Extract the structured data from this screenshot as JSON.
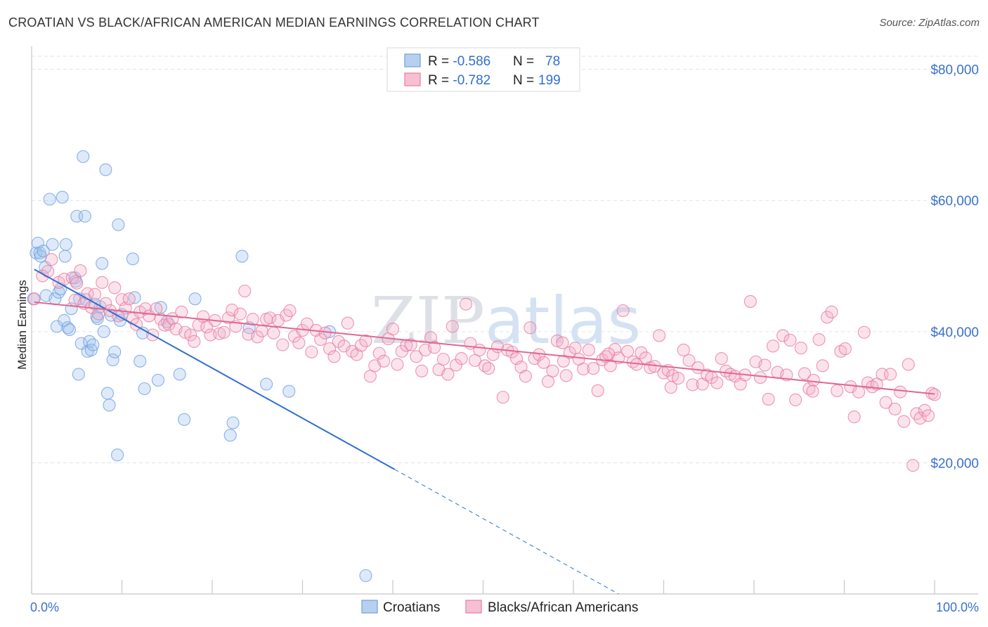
{
  "title": "CROATIAN VS BLACK/AFRICAN AMERICAN MEDIAN EARNINGS CORRELATION CHART",
  "source": "Source: ZipAtlas.com",
  "watermark": "ZIPatlas",
  "chart_data": {
    "type": "scatter",
    "xlabel": "",
    "ylabel": "Median Earnings",
    "xlim": [
      0,
      100
    ],
    "ylim": [
      0,
      82000
    ],
    "x_tick_labels": {
      "left": "0.0%",
      "right": "100.0%"
    },
    "y_ticks": [
      {
        "value": 20000,
        "label": "$20,000"
      },
      {
        "value": 40000,
        "label": "$40,000"
      },
      {
        "value": 60000,
        "label": "$60,000"
      },
      {
        "value": 80000,
        "label": "$80,000"
      }
    ],
    "legend": [
      {
        "name": "Croatians",
        "r_label": "R = ",
        "r_value": "-0.586",
        "n_label": "N = ",
        "n_value": "78",
        "color": "#6fa0e0",
        "fill": "#b8d0f0"
      },
      {
        "name": "Blacks/African Americans",
        "r_label": "R = ",
        "r_value": "-0.782",
        "n_label": "N = ",
        "n_value": "199",
        "color": "#e87ca0",
        "fill": "#f6c0d2"
      }
    ],
    "series": [
      {
        "name": "Croatians",
        "color": "#6fa0e0",
        "trend": {
          "x0": 0.3,
          "y0": 49500,
          "x1": 40.2,
          "y1": 19000,
          "dash_x1": 65,
          "dash_y1": 0
        },
        "points": [
          [
            0.2,
            45000
          ],
          [
            0.5,
            52000
          ],
          [
            0.7,
            53500
          ],
          [
            0.9,
            52000
          ],
          [
            1.0,
            51500
          ],
          [
            1.3,
            52300
          ],
          [
            1.5,
            49800
          ],
          [
            1.6,
            45500
          ],
          [
            2.0,
            60200
          ],
          [
            2.3,
            53300
          ],
          [
            2.6,
            45000
          ],
          [
            2.8,
            40800
          ],
          [
            3.0,
            46000
          ],
          [
            3.2,
            46500
          ],
          [
            3.4,
            60500
          ],
          [
            3.6,
            41700
          ],
          [
            3.7,
            51500
          ],
          [
            3.8,
            53300
          ],
          [
            4.0,
            40600
          ],
          [
            4.2,
            40300
          ],
          [
            4.4,
            43500
          ],
          [
            4.8,
            48200
          ],
          [
            4.9,
            47700
          ],
          [
            5.0,
            57600
          ],
          [
            5.2,
            33500
          ],
          [
            5.3,
            45000
          ],
          [
            5.5,
            38200
          ],
          [
            5.9,
            57600
          ],
          [
            5.7,
            66700
          ],
          [
            6.0,
            44900
          ],
          [
            6.2,
            37000
          ],
          [
            6.4,
            38500
          ],
          [
            6.6,
            37200
          ],
          [
            6.8,
            38000
          ],
          [
            7.0,
            44200
          ],
          [
            7.2,
            42300
          ],
          [
            7.3,
            42000
          ],
          [
            7.6,
            43800
          ],
          [
            7.8,
            50400
          ],
          [
            8.0,
            40000
          ],
          [
            8.2,
            64700
          ],
          [
            8.4,
            30600
          ],
          [
            8.6,
            28800
          ],
          [
            8.8,
            42500
          ],
          [
            9.0,
            35700
          ],
          [
            9.2,
            36900
          ],
          [
            9.5,
            21200
          ],
          [
            9.6,
            56300
          ],
          [
            9.8,
            41700
          ],
          [
            10.0,
            42600
          ],
          [
            11.2,
            51100
          ],
          [
            11.4,
            45200
          ],
          [
            12.0,
            35500
          ],
          [
            12.3,
            39800
          ],
          [
            12.5,
            31300
          ],
          [
            14.0,
            32600
          ],
          [
            14.3,
            43700
          ],
          [
            15.0,
            41500
          ],
          [
            16.4,
            33500
          ],
          [
            16.9,
            26600
          ],
          [
            18.1,
            45000
          ],
          [
            22.3,
            26100
          ],
          [
            22.0,
            24200
          ],
          [
            23.3,
            51500
          ],
          [
            24.1,
            40600
          ],
          [
            26.0,
            32000
          ],
          [
            28.5,
            30900
          ],
          [
            33.0,
            40000
          ],
          [
            37.0,
            2800
          ]
        ]
      },
      {
        "name": "Blacks/African Americans",
        "color": "#e87ca0",
        "trend": {
          "x0": 0.3,
          "y0": 44500,
          "x1": 100,
          "y1": 30500
        },
        "points": [
          [
            0.3,
            45000
          ],
          [
            1.2,
            48500
          ],
          [
            1.8,
            49200
          ],
          [
            2.2,
            51000
          ],
          [
            3.0,
            47500
          ],
          [
            3.6,
            48000
          ],
          [
            4.5,
            48200
          ],
          [
            4.8,
            44800
          ],
          [
            5.0,
            47400
          ],
          [
            5.4,
            49300
          ],
          [
            5.8,
            44300
          ],
          [
            6.2,
            45800
          ],
          [
            6.6,
            43700
          ],
          [
            7.0,
            45700
          ],
          [
            7.4,
            42700
          ],
          [
            7.8,
            47500
          ],
          [
            8.2,
            44300
          ],
          [
            8.7,
            43200
          ],
          [
            9.2,
            46700
          ],
          [
            9.6,
            42400
          ],
          [
            10.0,
            44900
          ],
          [
            10.4,
            43600
          ],
          [
            10.8,
            45000
          ],
          [
            11.2,
            42000
          ],
          [
            11.6,
            41100
          ],
          [
            12.0,
            43000
          ],
          [
            12.6,
            43500
          ],
          [
            13.0,
            42400
          ],
          [
            13.4,
            39500
          ],
          [
            13.8,
            43500
          ],
          [
            14.3,
            41900
          ],
          [
            14.7,
            41000
          ],
          [
            15.2,
            41100
          ],
          [
            15.6,
            42000
          ],
          [
            16.0,
            40400
          ],
          [
            16.6,
            43000
          ],
          [
            17.0,
            39900
          ],
          [
            17.6,
            39500
          ],
          [
            18.0,
            38500
          ],
          [
            18.5,
            41000
          ],
          [
            19.0,
            42300
          ],
          [
            19.4,
            40700
          ],
          [
            19.8,
            39500
          ],
          [
            20.3,
            41700
          ],
          [
            20.8,
            39700
          ],
          [
            21.3,
            39900
          ],
          [
            21.8,
            42100
          ],
          [
            22.2,
            43300
          ],
          [
            22.6,
            40800
          ],
          [
            23.1,
            42700
          ],
          [
            23.6,
            46200
          ],
          [
            24.0,
            39600
          ],
          [
            24.5,
            41900
          ],
          [
            25.0,
            39200
          ],
          [
            25.5,
            40100
          ],
          [
            26.0,
            41900
          ],
          [
            26.4,
            42100
          ],
          [
            26.8,
            39800
          ],
          [
            27.3,
            41700
          ],
          [
            27.8,
            38000
          ],
          [
            28.2,
            42500
          ],
          [
            28.6,
            43200
          ],
          [
            29.1,
            39300
          ],
          [
            29.6,
            38300
          ],
          [
            30.0,
            40200
          ],
          [
            30.5,
            41200
          ],
          [
            31.0,
            36900
          ],
          [
            31.5,
            40200
          ],
          [
            32.0,
            38800
          ],
          [
            32.5,
            39800
          ],
          [
            33.0,
            37400
          ],
          [
            33.5,
            36200
          ],
          [
            34.0,
            38500
          ],
          [
            34.6,
            37800
          ],
          [
            35.0,
            41300
          ],
          [
            35.5,
            37000
          ],
          [
            36.0,
            36500
          ],
          [
            36.5,
            37900
          ],
          [
            37.0,
            38600
          ],
          [
            37.5,
            33200
          ],
          [
            38.0,
            34800
          ],
          [
            38.5,
            36700
          ],
          [
            39.0,
            35500
          ],
          [
            39.5,
            38900
          ],
          [
            40.0,
            40400
          ],
          [
            40.5,
            35000
          ],
          [
            41.0,
            37000
          ],
          [
            41.5,
            37900
          ],
          [
            42.0,
            38000
          ],
          [
            42.6,
            36200
          ],
          [
            43.2,
            34000
          ],
          [
            43.6,
            37200
          ],
          [
            44.2,
            39100
          ],
          [
            44.6,
            37600
          ],
          [
            45.1,
            34200
          ],
          [
            45.6,
            35800
          ],
          [
            46.1,
            33500
          ],
          [
            46.6,
            40800
          ],
          [
            47.0,
            34900
          ],
          [
            47.6,
            35900
          ],
          [
            48.1,
            44200
          ],
          [
            48.6,
            38200
          ],
          [
            49.1,
            35600
          ],
          [
            49.6,
            37200
          ],
          [
            50.2,
            34800
          ],
          [
            50.6,
            34400
          ],
          [
            51.1,
            36500
          ],
          [
            51.6,
            37700
          ],
          [
            52.2,
            30000
          ],
          [
            52.7,
            37200
          ],
          [
            53.2,
            36900
          ],
          [
            53.7,
            35900
          ],
          [
            54.2,
            34600
          ],
          [
            54.7,
            33200
          ],
          [
            55.2,
            40600
          ],
          [
            55.7,
            35900
          ],
          [
            56.2,
            36500
          ],
          [
            56.7,
            35300
          ],
          [
            57.2,
            32400
          ],
          [
            57.7,
            34000
          ],
          [
            58.2,
            38600
          ],
          [
            58.8,
            38300
          ],
          [
            59.2,
            33300
          ],
          [
            59.6,
            36800
          ],
          [
            60.2,
            37500
          ],
          [
            60.6,
            35800
          ],
          [
            61.1,
            34300
          ],
          [
            61.7,
            37200
          ],
          [
            62.2,
            34400
          ],
          [
            62.7,
            31000
          ],
          [
            63.2,
            35700
          ],
          [
            63.6,
            36200
          ],
          [
            64.1,
            34800
          ],
          [
            64.6,
            37300
          ],
          [
            65.0,
            36000
          ],
          [
            65.5,
            43200
          ],
          [
            66.0,
            37000
          ],
          [
            66.6,
            35400
          ],
          [
            67.0,
            35000
          ],
          [
            67.5,
            36800
          ],
          [
            68.0,
            36000
          ],
          [
            68.5,
            34500
          ],
          [
            69.0,
            34700
          ],
          [
            69.5,
            39400
          ],
          [
            70.0,
            33700
          ],
          [
            70.5,
            34100
          ],
          [
            71.0,
            33300
          ],
          [
            71.6,
            32900
          ],
          [
            72.2,
            37200
          ],
          [
            72.8,
            35600
          ],
          [
            73.2,
            31900
          ],
          [
            73.8,
            34500
          ],
          [
            74.3,
            32000
          ],
          [
            74.8,
            33400
          ],
          [
            75.3,
            33000
          ],
          [
            75.9,
            32200
          ],
          [
            76.4,
            35900
          ],
          [
            76.9,
            34000
          ],
          [
            77.4,
            33500
          ],
          [
            77.9,
            33200
          ],
          [
            78.5,
            32000
          ],
          [
            79.0,
            33400
          ],
          [
            79.6,
            44600
          ],
          [
            80.2,
            35400
          ],
          [
            80.7,
            33000
          ],
          [
            81.2,
            34900
          ],
          [
            81.6,
            29700
          ],
          [
            82.1,
            37800
          ],
          [
            82.6,
            33800
          ],
          [
            83.2,
            39400
          ],
          [
            83.6,
            33400
          ],
          [
            84.0,
            38700
          ],
          [
            84.6,
            29600
          ],
          [
            85.2,
            37500
          ],
          [
            85.6,
            33600
          ],
          [
            86.1,
            31300
          ],
          [
            86.6,
            32600
          ],
          [
            87.2,
            38800
          ],
          [
            87.6,
            34800
          ],
          [
            88.1,
            42200
          ],
          [
            88.6,
            43000
          ],
          [
            89.2,
            31000
          ],
          [
            89.6,
            37000
          ],
          [
            90.1,
            37400
          ],
          [
            90.7,
            31600
          ],
          [
            91.1,
            27000
          ],
          [
            91.6,
            30800
          ],
          [
            92.2,
            39900
          ],
          [
            92.6,
            32200
          ],
          [
            93.1,
            31600
          ],
          [
            93.6,
            32000
          ],
          [
            94.2,
            33500
          ],
          [
            94.6,
            29200
          ],
          [
            95.1,
            33500
          ],
          [
            95.6,
            28200
          ],
          [
            96.2,
            30800
          ],
          [
            96.6,
            26300
          ],
          [
            97.1,
            35000
          ],
          [
            97.6,
            19600
          ],
          [
            98.0,
            27500
          ],
          [
            98.4,
            26800
          ],
          [
            98.9,
            28000
          ],
          [
            99.3,
            27200
          ],
          [
            99.7,
            30600
          ],
          [
            100.0,
            30400
          ],
          [
            86.5,
            30900
          ],
          [
            70.8,
            31500
          ],
          [
            63.9,
            36600
          ],
          [
            58.9,
            35500
          ]
        ]
      }
    ]
  }
}
